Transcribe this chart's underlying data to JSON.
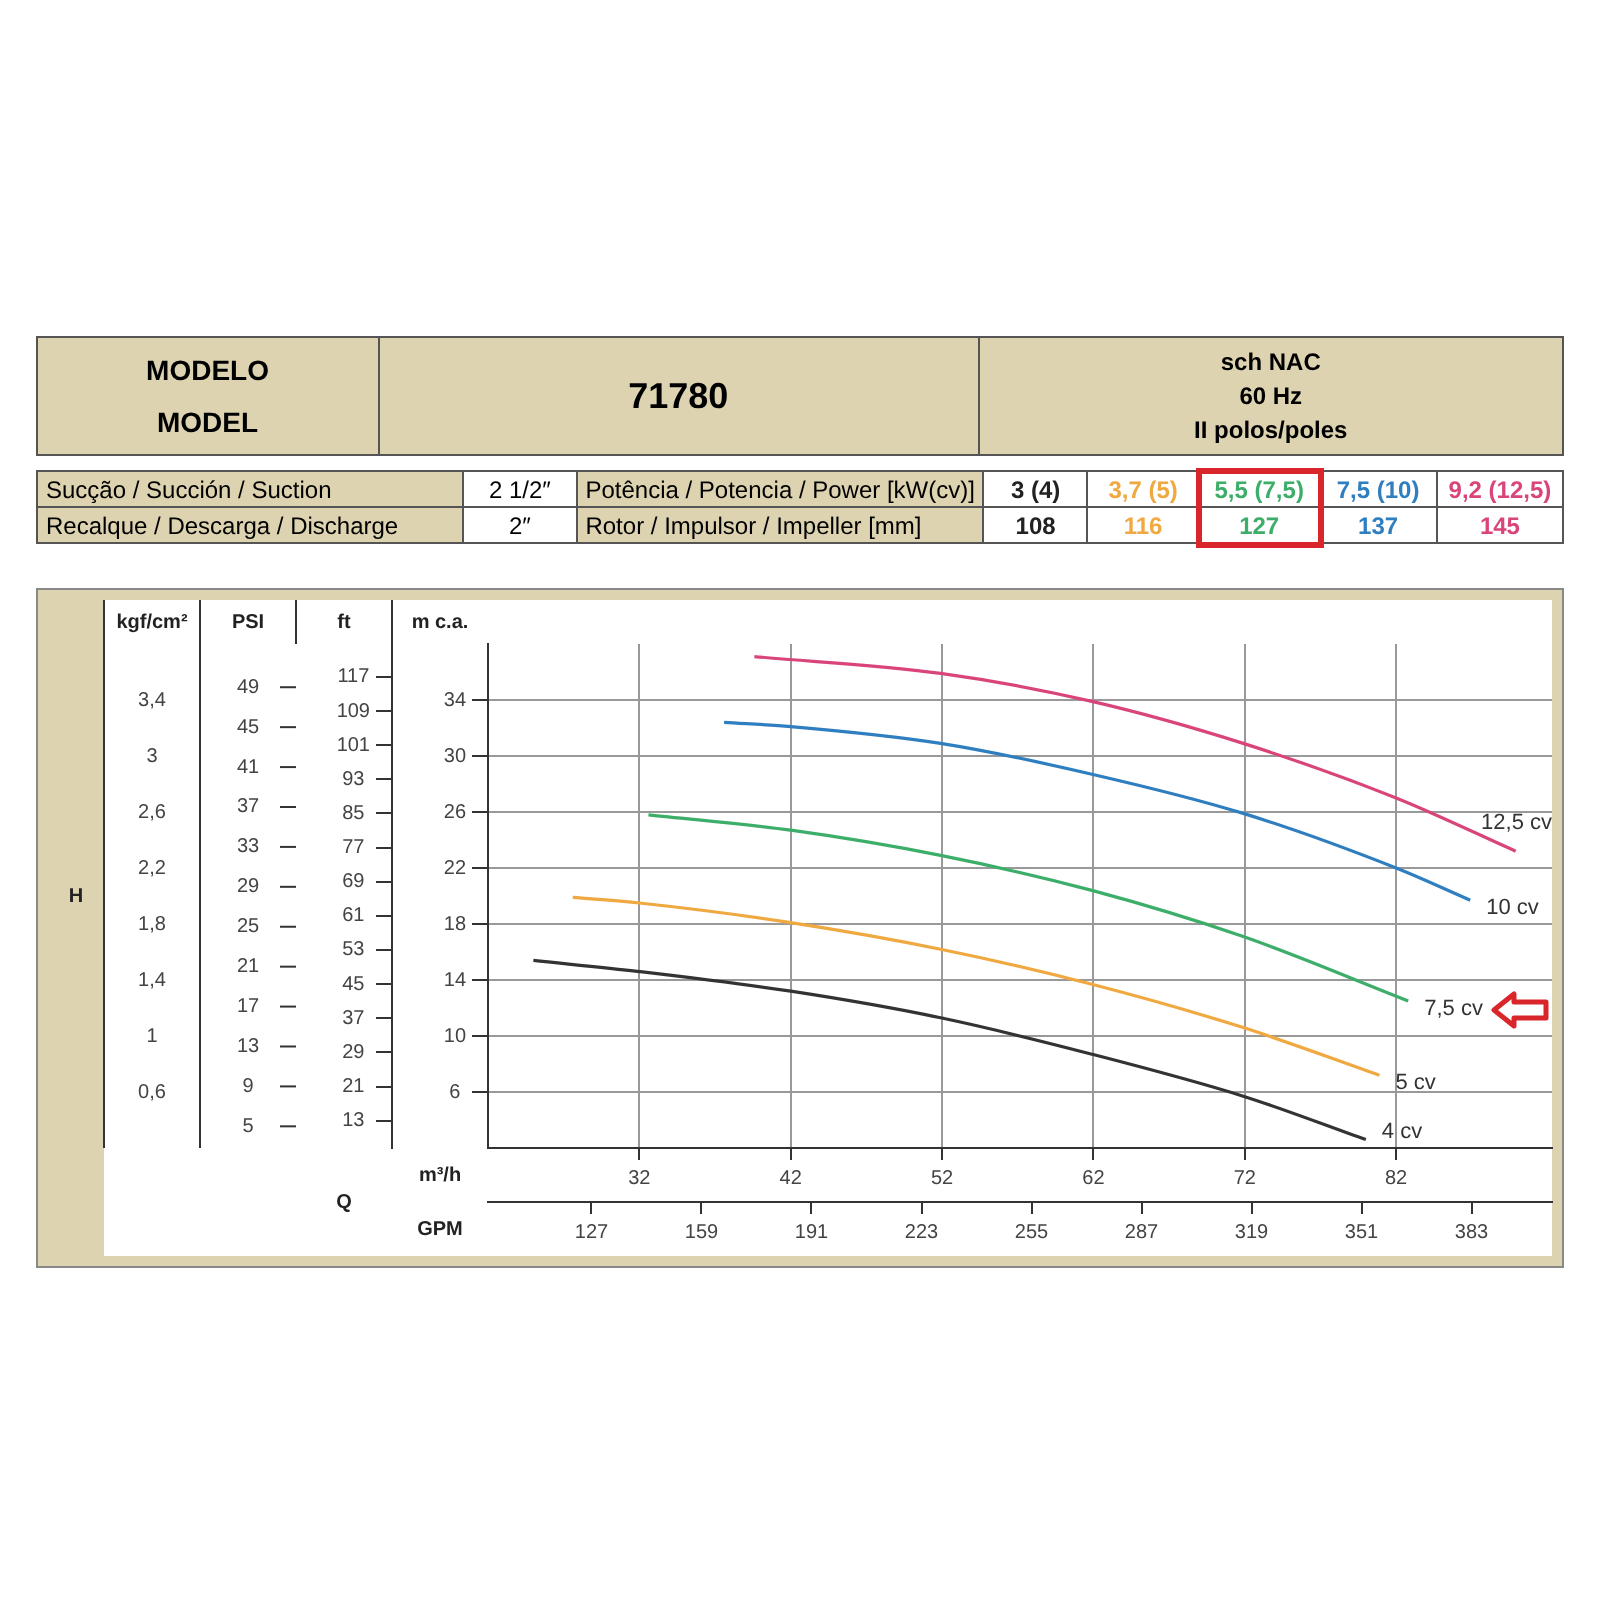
{
  "chart_data": {
    "type": "line",
    "xlim": [
      22,
      92.3
    ],
    "xticks": [
      32,
      42,
      52,
      62,
      72,
      82
    ],
    "xlabel": "m³/h",
    "x2lim": [
      96.9,
      406.4
    ],
    "x2ticks": [
      127,
      159,
      191,
      223,
      255,
      287,
      319,
      351,
      383
    ],
    "x2label": "GPM",
    "ylim": [
      2,
      38
    ],
    "yticks": [
      6,
      10,
      14,
      18,
      22,
      26,
      30,
      34
    ],
    "ylabel": "m c.a.",
    "y2lim": [
      6.6,
      124.7
    ],
    "y2ticks": [
      13,
      21,
      29,
      37,
      45,
      53,
      61,
      69,
      77,
      85,
      93,
      101,
      109,
      117
    ],
    "y2label": "ft",
    "grid": true,
    "legend": false,
    "series": [
      {
        "name": "4 cv",
        "color": "#333333",
        "x": [
          25,
          32,
          42,
          51.9,
          61.9,
          71.9,
          80
        ],
        "values": [
          15.4,
          14.6,
          13.2,
          11.3,
          8.7,
          5.7,
          2.6
        ]
      },
      {
        "name": "5 cv",
        "color": "#f0a840",
        "x": [
          27.6,
          32,
          42,
          51.9,
          61.9,
          71.9,
          80.9
        ],
        "values": [
          19.9,
          19.5,
          18.1,
          16.2,
          13.7,
          10.6,
          7.2
        ]
      },
      {
        "name": "7,5 cv",
        "color": "#3dae6a",
        "x": [
          32.6,
          42,
          51.9,
          61.9,
          71.9,
          82.8
        ],
        "values": [
          25.8,
          24.7,
          22.9,
          20.4,
          17.1,
          12.5
        ]
      },
      {
        "name": "10 cv",
        "color": "#2f7fc0",
        "x": [
          37.6,
          42,
          51.9,
          61.9,
          71.9,
          82,
          86.9
        ],
        "values": [
          32.4,
          32.1,
          30.9,
          28.7,
          25.9,
          22,
          19.7
        ]
      },
      {
        "name": "12,5 cv",
        "color": "#d9457a",
        "x": [
          39.6,
          51.9,
          61.9,
          71.9,
          82,
          89.9
        ],
        "values": [
          37.1,
          35.9,
          33.9,
          30.9,
          27,
          23.2
        ]
      }
    ],
    "annotations": [
      "MODELO",
      "MODEL",
      "71780",
      "sch NAC",
      "60 Hz",
      "II polos/poles",
      "Sucção / Succión / Suction",
      "2 1/2″",
      "Potência / Potencia / Power [kW(cv)]",
      "3 (4)",
      "3,7 (5)",
      "5,5 (7,5)",
      "7,5 (10)",
      "9,2 (12,5)",
      "Recalque / Descarga / Discharge",
      "2″",
      "Rotor / Impulsor / Impeller [mm]",
      "108",
      "116",
      "127",
      "137",
      "145",
      "H",
      "Q",
      "kgf/cm²",
      "0,6",
      "1",
      "1,4",
      "1,8",
      "2,2",
      "2,6",
      "3",
      "3,4",
      "PSI",
      "5",
      "9",
      "13",
      "17",
      "21",
      "25",
      "29",
      "33",
      "37",
      "41",
      "45",
      "49"
    ]
  }
}
